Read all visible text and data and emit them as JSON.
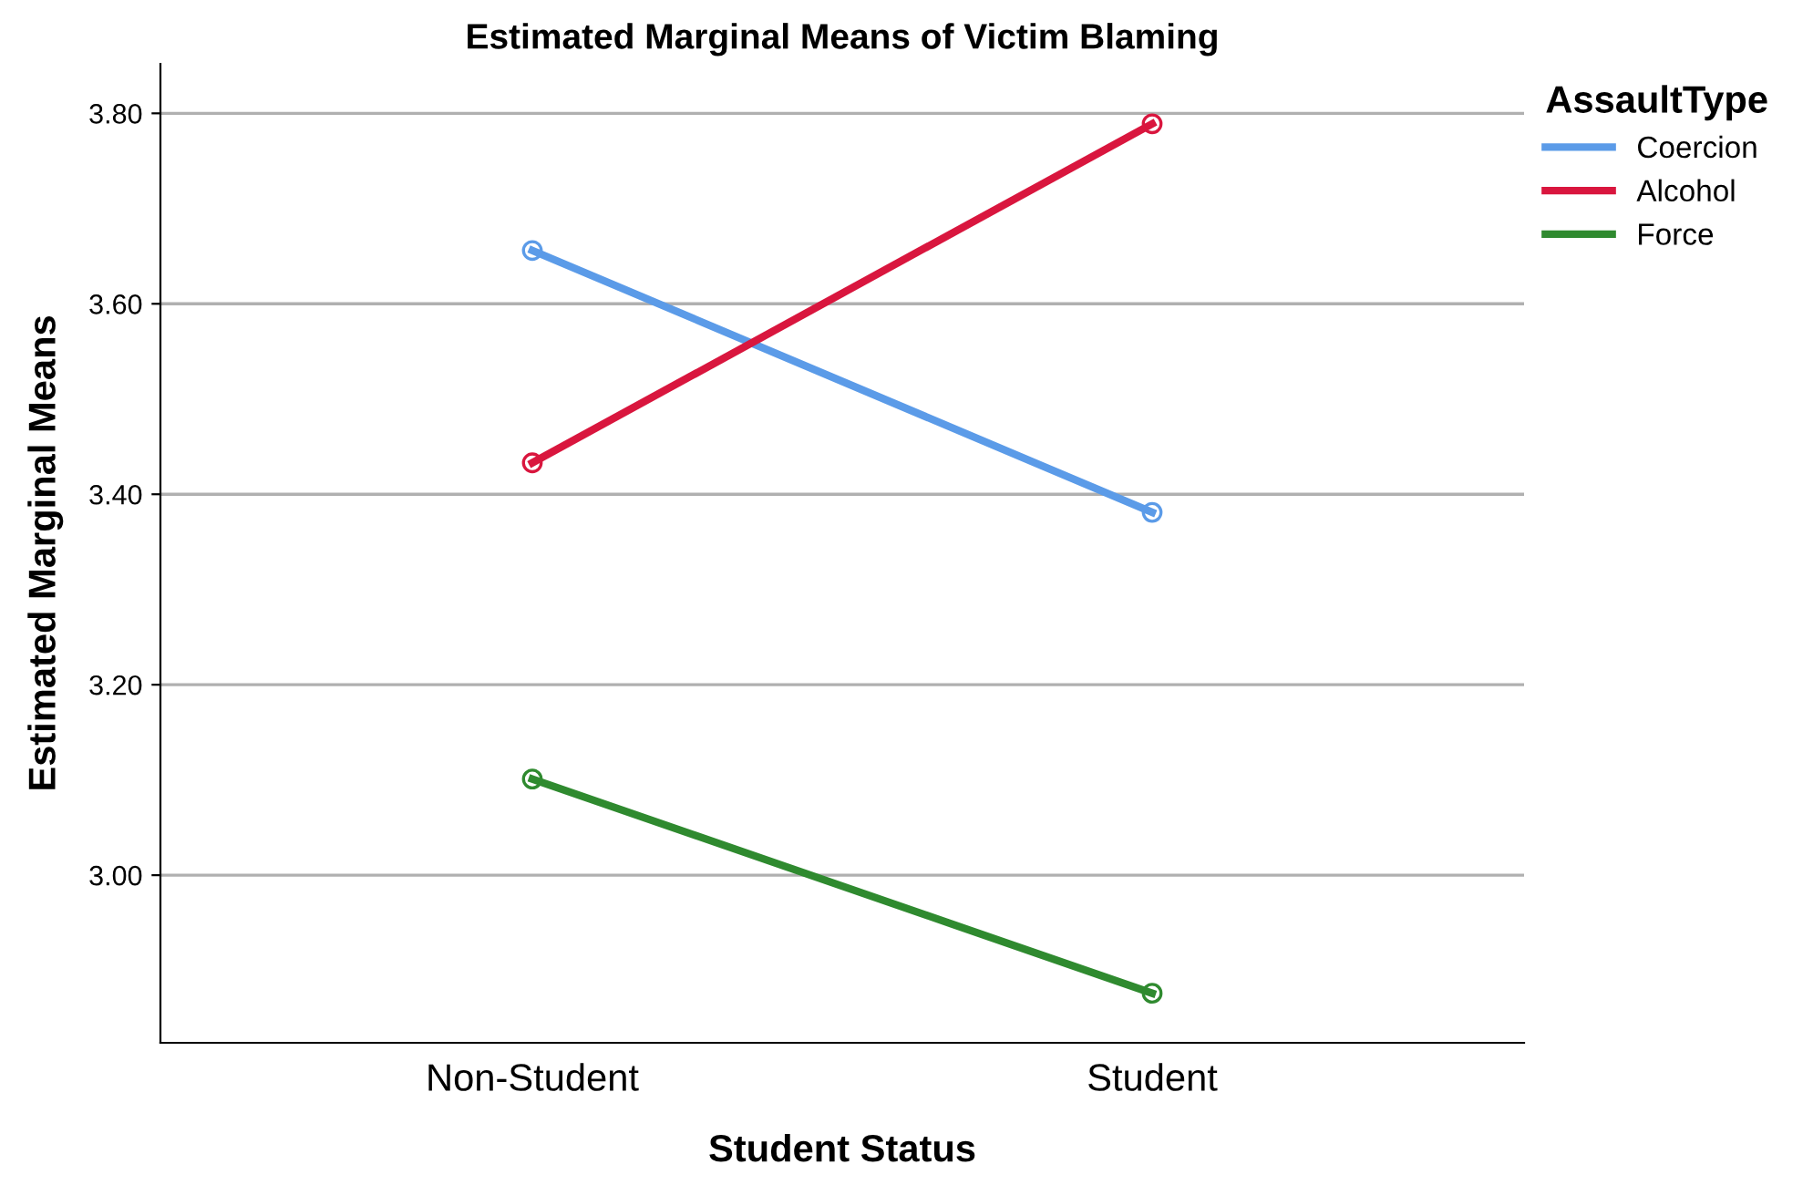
{
  "chart_data": {
    "type": "line",
    "title": "Estimated Marginal Means of Victim Blaming",
    "xlabel": "Student Status",
    "ylabel": "Estimated Marginal Means",
    "legend_title": "AssaultType",
    "categories": [
      "Non-Student",
      "Student"
    ],
    "series": [
      {
        "name": "Coercion",
        "color": "#5b9be8",
        "values": [
          3.656,
          3.381
        ]
      },
      {
        "name": "Alcohol",
        "color": "#d9163e",
        "values": [
          3.433,
          3.789
        ]
      },
      {
        "name": "Force",
        "color": "#2f8a2f",
        "values": [
          3.101,
          2.876
        ]
      }
    ],
    "ylim": [
      2.824,
      3.852
    ],
    "yticks": [
      {
        "value": 3.0,
        "label": "3.00"
      },
      {
        "value": 3.2,
        "label": "3.20"
      },
      {
        "value": 3.4,
        "label": "3.40"
      },
      {
        "value": 3.6,
        "label": "3.60"
      },
      {
        "value": 3.8,
        "label": "3.80"
      }
    ],
    "grid": "y",
    "legend": "top right",
    "marker": "circle",
    "line_style": "solid"
  }
}
